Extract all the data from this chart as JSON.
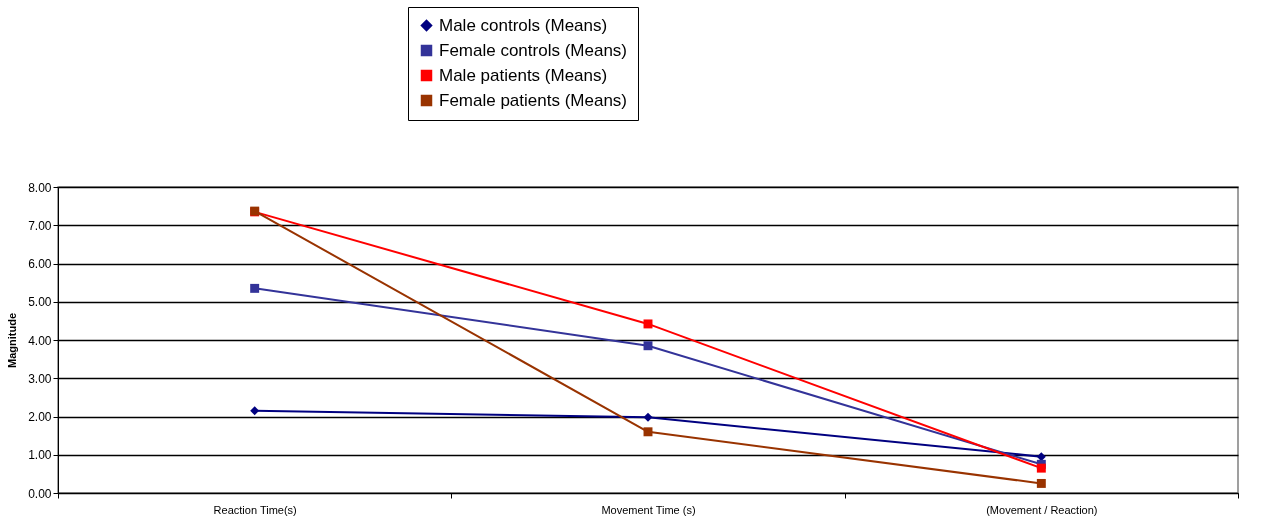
{
  "chart_data": {
    "type": "line",
    "ylabel": "Magnitude",
    "categories": [
      "Reaction Time(s)",
      "Movement Time (s)",
      "(Movement / Reaction)"
    ],
    "series": [
      {
        "name": "Male controls (Means)",
        "color": "#000080",
        "marker": "diamond",
        "values": [
          2.15,
          1.98,
          0.95
        ]
      },
      {
        "name": "Female controls (Means)",
        "color": "#333399",
        "marker": "square",
        "values": [
          5.35,
          3.85,
          0.75
        ]
      },
      {
        "name": "Male patients (Means)",
        "color": "#ff0000",
        "marker": "square",
        "values": [
          7.35,
          4.42,
          0.65
        ]
      },
      {
        "name": "Female patients (Means)",
        "color": "#993300",
        "marker": "square",
        "values": [
          7.37,
          1.6,
          0.25
        ]
      }
    ],
    "ylim": [
      0,
      8
    ],
    "yticks": [
      {
        "value": 0,
        "label": "0.00"
      },
      {
        "value": 1,
        "label": "1.00"
      },
      {
        "value": 2,
        "label": "2.00"
      },
      {
        "value": 3,
        "label": "3.00"
      },
      {
        "value": 4,
        "label": "4.00"
      },
      {
        "value": 5,
        "label": "5.00"
      },
      {
        "value": 6,
        "label": "6.00"
      },
      {
        "value": 7,
        "label": "7.00"
      },
      {
        "value": 8,
        "label": "8.00"
      }
    ],
    "grid": "y",
    "legend": "top",
    "line_style": "solid"
  }
}
